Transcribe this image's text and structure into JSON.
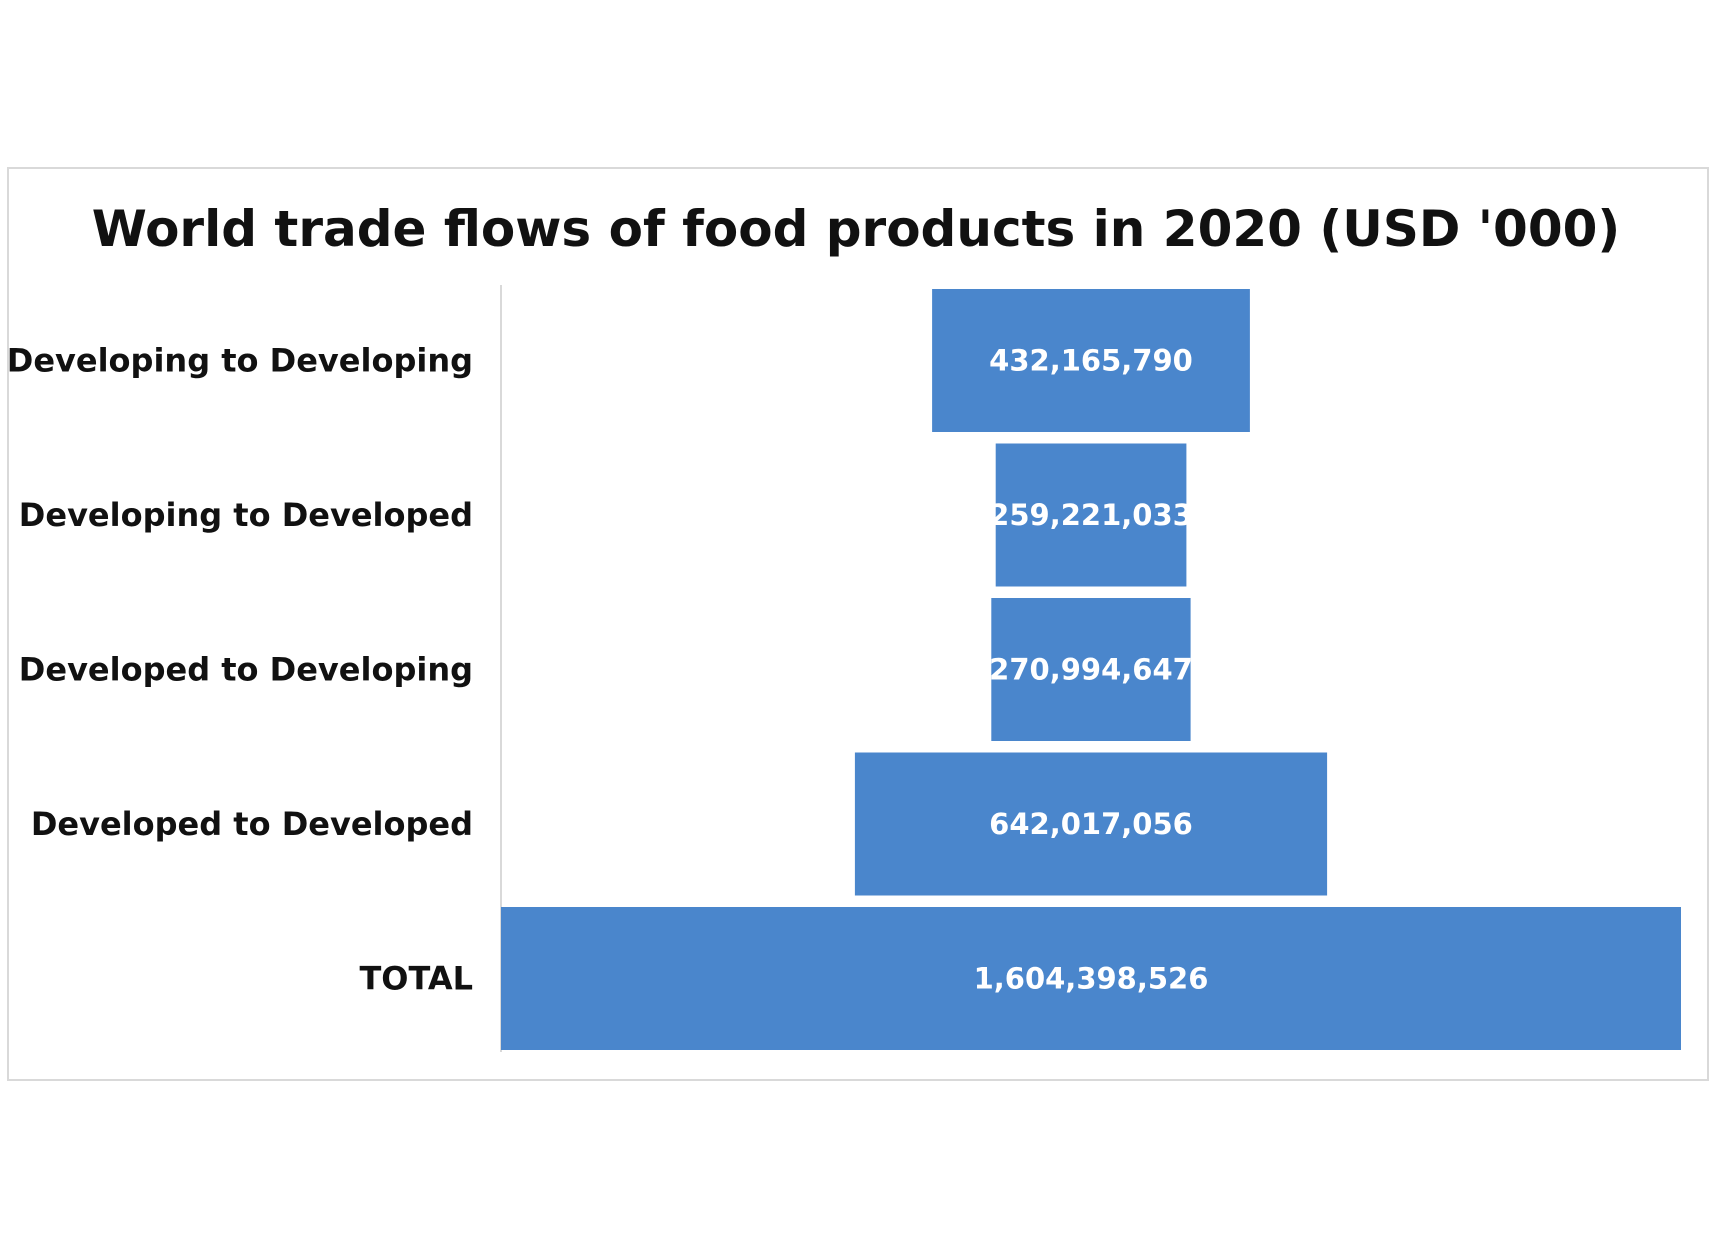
{
  "chart_data": {
    "type": "bar",
    "subtype": "funnel",
    "title": "World trade flows of food products in 2020 (USD '000)",
    "categories": [
      "Developing to Developing",
      "Developing to Developed",
      "Developed to Developing",
      "Developed to Developed",
      "TOTAL"
    ],
    "values": [
      432165790,
      259221033,
      270994647,
      642017056,
      1604398526
    ],
    "value_labels": [
      "432,165,790",
      "259,221,033",
      "270,994,647",
      "642,017,056",
      "1,604,398,526"
    ],
    "xlabel": "",
    "ylabel": "",
    "bar_color": "#4a86cc",
    "label_color": "#ffffff",
    "grid": false,
    "legend": "none"
  }
}
